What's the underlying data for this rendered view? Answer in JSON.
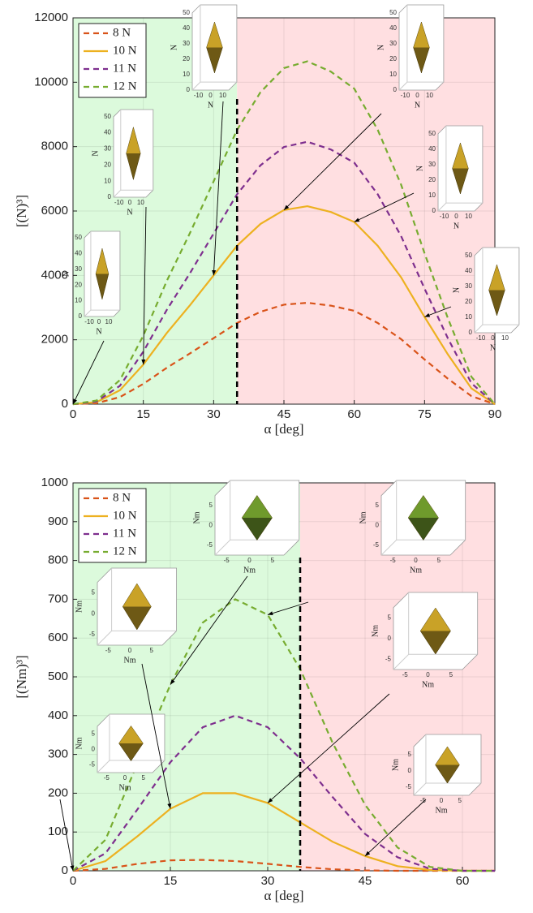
{
  "chart_data": [
    {
      "type": "line",
      "xlabel": "α [deg]",
      "ylabel": "[(N)³]",
      "x": [
        0,
        5,
        10,
        15,
        20,
        25,
        30,
        35,
        40,
        45,
        50,
        55,
        60,
        65,
        70,
        75,
        80,
        85,
        90
      ],
      "series": [
        {
          "name": "8 N",
          "color": "#d95319",
          "dashed": true,
          "values": [
            0,
            30,
            220,
            630,
            1130,
            1580,
            2050,
            2520,
            2870,
            3090,
            3150,
            3060,
            2900,
            2520,
            2020,
            1390,
            790,
            250,
            0
          ]
        },
        {
          "name": "10 N",
          "color": "#edb120",
          "dashed": false,
          "values": [
            0,
            60,
            430,
            1230,
            2210,
            3080,
            4000,
            4920,
            5600,
            6030,
            6150,
            5970,
            5660,
            4920,
            3940,
            2710,
            1540,
            490,
            0
          ]
        },
        {
          "name": "11 N",
          "color": "#7e2f8e",
          "dashed": true,
          "values": [
            0,
            80,
            570,
            1630,
            2930,
            4080,
            5300,
            6520,
            7420,
            7990,
            8150,
            7910,
            7500,
            6520,
            5220,
            3590,
            2040,
            650,
            0
          ]
        },
        {
          "name": "12 N",
          "color": "#77ac30",
          "dashed": true,
          "values": [
            0,
            110,
            750,
            2130,
            3830,
            5330,
            6920,
            8520,
            9690,
            10440,
            10650,
            10330,
            9800,
            8520,
            6820,
            4690,
            2660,
            850,
            0
          ]
        }
      ],
      "xlim": [
        0,
        90
      ],
      "xticks": [
        0,
        15,
        30,
        45,
        60,
        75,
        90
      ],
      "ylim": [
        0,
        12000
      ],
      "yticks": [
        0,
        2000,
        4000,
        6000,
        8000,
        10000,
        12000
      ],
      "grid": true,
      "boundary": 35,
      "legend": "upper-left",
      "insets": [
        {
          "color": "#c9a227",
          "unit": "N",
          "zticks": [
            0,
            10,
            20,
            30,
            40,
            50
          ],
          "xticks": [
            -10,
            0,
            10
          ]
        },
        {
          "color": "#c9a227",
          "unit": "N",
          "zticks": [
            0,
            10,
            20,
            30,
            40,
            50
          ],
          "xticks": [
            -10,
            0,
            10
          ]
        },
        {
          "color": "#c9a227",
          "unit": "N",
          "zticks": [
            0,
            10,
            20,
            30,
            40,
            50
          ],
          "xticks": [
            -10,
            0,
            10
          ]
        },
        {
          "color": "#c9a227",
          "unit": "N",
          "zticks": [
            0,
            10,
            20,
            30,
            40,
            50
          ],
          "xticks": [
            -10,
            0,
            10
          ]
        },
        {
          "color": "#c9a227",
          "unit": "N",
          "zticks": [
            0,
            10,
            20,
            30,
            40,
            50
          ],
          "xticks": [
            -10,
            0,
            10
          ]
        },
        {
          "color": "#c9a227",
          "unit": "N",
          "zticks": [
            0,
            10,
            20,
            30,
            40,
            50
          ],
          "xticks": [
            -10,
            0,
            10
          ]
        }
      ]
    },
    {
      "type": "line",
      "xlabel": "α [deg]",
      "ylabel": "[(Nm)³]",
      "x": [
        0,
        5,
        10,
        15,
        20,
        25,
        30,
        35,
        40,
        45,
        50,
        55,
        60,
        65
      ],
      "series": [
        {
          "name": "8 N",
          "color": "#d95319",
          "dashed": true,
          "values": [
            0,
            5,
            18,
            27,
            28,
            25,
            18,
            10,
            4,
            1,
            0,
            0,
            0,
            0
          ]
        },
        {
          "name": "10 N",
          "color": "#edb120",
          "dashed": false,
          "values": [
            0,
            25,
            90,
            160,
            200,
            200,
            175,
            125,
            75,
            38,
            12,
            2,
            0,
            0
          ]
        },
        {
          "name": "11 N",
          "color": "#7e2f8e",
          "dashed": true,
          "values": [
            0,
            45,
            160,
            280,
            370,
            400,
            370,
            290,
            190,
            95,
            35,
            5,
            0,
            0
          ]
        },
        {
          "name": "12 N",
          "color": "#77ac30",
          "dashed": true,
          "values": [
            0,
            80,
            280,
            480,
            640,
            700,
            660,
            520,
            330,
            170,
            60,
            10,
            0,
            0
          ]
        }
      ],
      "xlim": [
        0,
        65
      ],
      "xticks": [
        0,
        15,
        30,
        45,
        60
      ],
      "ylim": [
        0,
        1000
      ],
      "yticks": [
        0,
        100,
        200,
        300,
        400,
        500,
        600,
        700,
        800,
        900,
        1000
      ],
      "grid": true,
      "boundary": 35,
      "legend": "upper-left",
      "insets": [
        {
          "color": "#c9a227",
          "unit": "Nm",
          "zticks": [
            5,
            0,
            -5
          ],
          "xticks": [
            -5,
            0,
            5
          ]
        },
        {
          "color": "#c9a227",
          "unit": "Nm",
          "zticks": [
            5,
            0,
            -5
          ],
          "xticks": [
            -5,
            0,
            5
          ]
        },
        {
          "color": "#6f9a2c",
          "unit": "Nm",
          "zticks": [
            5,
            0,
            -5
          ],
          "xticks": [
            -5,
            0,
            5
          ]
        },
        {
          "color": "#6f9a2c",
          "unit": "Nm",
          "zticks": [
            5,
            0,
            -5
          ],
          "xticks": [
            -5,
            0,
            5
          ]
        },
        {
          "color": "#c9a227",
          "unit": "Nm",
          "zticks": [
            5,
            0,
            -5
          ],
          "xticks": [
            -5,
            0,
            5
          ]
        },
        {
          "color": "#c9a227",
          "unit": "Nm",
          "zticks": [
            5,
            0,
            -5
          ],
          "xticks": [
            -5,
            0,
            5
          ]
        }
      ]
    }
  ]
}
